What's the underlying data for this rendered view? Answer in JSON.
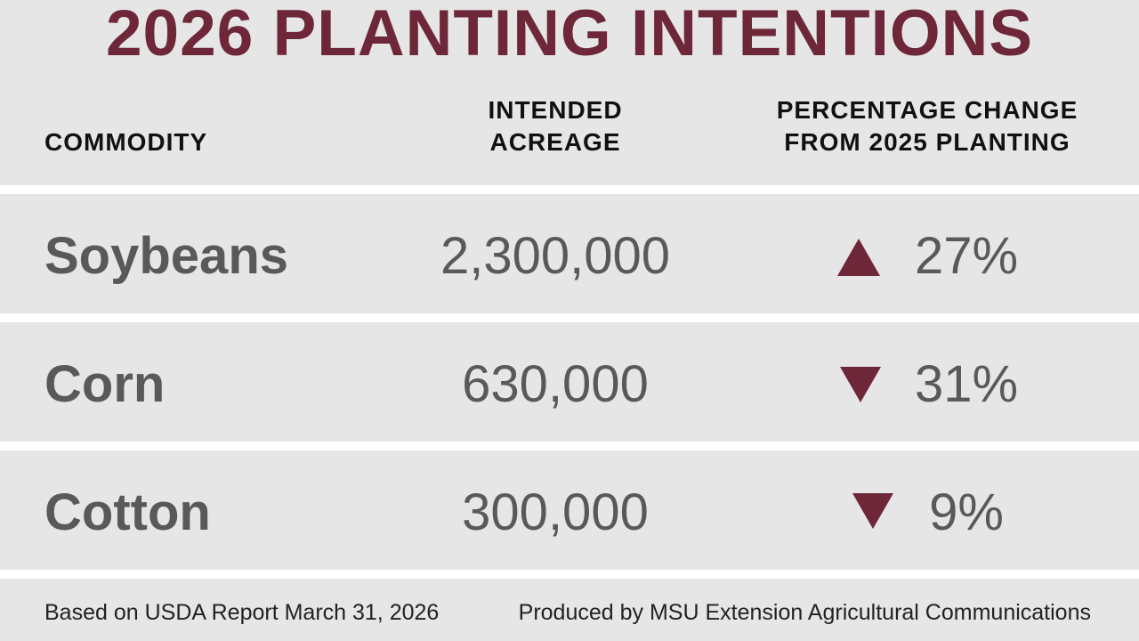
{
  "title": "2026 PLANTING INTENTIONS",
  "table": {
    "headers": [
      [
        "COMMODITY"
      ],
      [
        "INTENDED",
        "ACREAGE"
      ],
      [
        "PERCENTAGE CHANGE",
        "FROM 2025 PLANTING"
      ]
    ],
    "rows": [
      [
        "Soybeans",
        "2,300,000",
        "27%"
      ],
      [
        "Corn",
        "630,000",
        "31%"
      ],
      [
        "Cotton",
        "300,000",
        "9%"
      ]
    ]
  },
  "footer": {
    "left": "Based on USDA Report March 31, 2026",
    "right": "Produced by MSU Extension Agricultural Communications"
  }
}
